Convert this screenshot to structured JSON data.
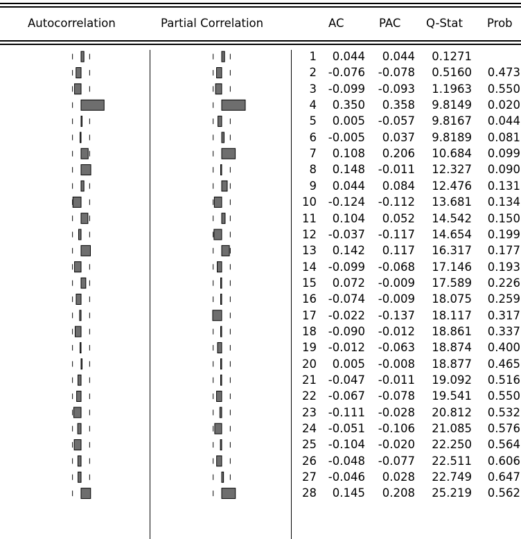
{
  "headers": {
    "autocorrelation": "Autocorrelation",
    "partial_correlation": "Partial Correlation",
    "ac": "AC",
    "pac": "PAC",
    "qstat": "Q-Stat",
    "prob": "Prob"
  },
  "chart_data": {
    "type": "table",
    "columns": [
      "",
      "AC",
      "PAC",
      "Q-Stat",
      "Prob"
    ],
    "rows": [
      {
        "lag": "1",
        "ac": "0.044",
        "pac": "0.044",
        "q": "0.1271",
        "prob": ""
      },
      {
        "lag": "2",
        "ac": "-0.076",
        "pac": "-0.078",
        "q": "0.5160",
        "prob": "0.473"
      },
      {
        "lag": "3",
        "ac": "-0.099",
        "pac": "-0.093",
        "q": "1.1963",
        "prob": "0.550"
      },
      {
        "lag": "4",
        "ac": "0.350",
        "pac": "0.358",
        "q": "9.8149",
        "prob": "0.020"
      },
      {
        "lag": "5",
        "ac": "0.005",
        "pac": "-0.057",
        "q": "9.8167",
        "prob": "0.044"
      },
      {
        "lag": "6",
        "ac": "-0.005",
        "pac": "0.037",
        "q": "9.8189",
        "prob": "0.081"
      },
      {
        "lag": "7",
        "ac": "0.108",
        "pac": "0.206",
        "q": "10.684",
        "prob": "0.099"
      },
      {
        "lag": "8",
        "ac": "0.148",
        "pac": "-0.011",
        "q": "12.327",
        "prob": "0.090"
      },
      {
        "lag": "9",
        "ac": "0.044",
        "pac": "0.084",
        "q": "12.476",
        "prob": "0.131"
      },
      {
        "lag": "10",
        "ac": "-0.124",
        "pac": "-0.112",
        "q": "13.681",
        "prob": "0.134"
      },
      {
        "lag": "11",
        "ac": "0.104",
        "pac": "0.052",
        "q": "14.542",
        "prob": "0.150"
      },
      {
        "lag": "12",
        "ac": "-0.037",
        "pac": "-0.117",
        "q": "14.654",
        "prob": "0.199"
      },
      {
        "lag": "13",
        "ac": "0.142",
        "pac": "0.117",
        "q": "16.317",
        "prob": "0.177"
      },
      {
        "lag": "14",
        "ac": "-0.099",
        "pac": "-0.068",
        "q": "17.146",
        "prob": "0.193"
      },
      {
        "lag": "15",
        "ac": "0.072",
        "pac": "-0.009",
        "q": "17.589",
        "prob": "0.226"
      },
      {
        "lag": "16",
        "ac": "-0.074",
        "pac": "-0.009",
        "q": "18.075",
        "prob": "0.259"
      },
      {
        "lag": "17",
        "ac": "-0.022",
        "pac": "-0.137",
        "q": "18.117",
        "prob": "0.317"
      },
      {
        "lag": "18",
        "ac": "-0.090",
        "pac": "-0.012",
        "q": "18.861",
        "prob": "0.337"
      },
      {
        "lag": "19",
        "ac": "-0.012",
        "pac": "-0.063",
        "q": "18.874",
        "prob": "0.400"
      },
      {
        "lag": "20",
        "ac": "0.005",
        "pac": "-0.008",
        "q": "18.877",
        "prob": "0.465"
      },
      {
        "lag": "21",
        "ac": "-0.047",
        "pac": "-0.011",
        "q": "19.092",
        "prob": "0.516"
      },
      {
        "lag": "22",
        "ac": "-0.067",
        "pac": "-0.078",
        "q": "19.541",
        "prob": "0.550"
      },
      {
        "lag": "23",
        "ac": "-0.111",
        "pac": "-0.028",
        "q": "20.812",
        "prob": "0.532"
      },
      {
        "lag": "24",
        "ac": "-0.051",
        "pac": "-0.106",
        "q": "21.085",
        "prob": "0.576"
      },
      {
        "lag": "25",
        "ac": "-0.104",
        "pac": "-0.020",
        "q": "22.250",
        "prob": "0.564"
      },
      {
        "lag": "26",
        "ac": "-0.048",
        "pac": "-0.077",
        "q": "22.511",
        "prob": "0.606"
      },
      {
        "lag": "27",
        "ac": "-0.046",
        "pac": "0.028",
        "q": "22.749",
        "prob": "0.647"
      },
      {
        "lag": "28",
        "ac": "0.145",
        "pac": "0.208",
        "q": "25.219",
        "prob": "0.562"
      }
    ],
    "confidence_bound": 0.13,
    "bar_color": "#6e6e6e"
  }
}
